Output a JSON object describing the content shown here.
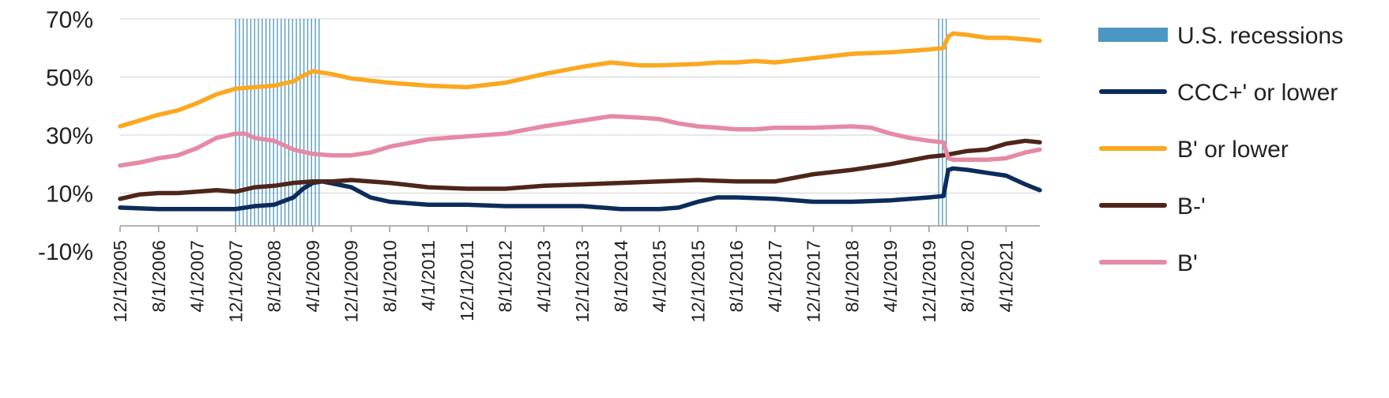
{
  "chart_data": {
    "type": "line",
    "ylim": [
      -10,
      70
    ],
    "yticks": [
      "70%",
      "50%",
      "30%",
      "10%",
      "-10%"
    ],
    "x_tick_labels": [
      "12/1/2005",
      "8/1/2006",
      "4/1/2007",
      "12/1/2007",
      "8/1/2008",
      "4/1/2009",
      "12/1/2009",
      "8/1/2010",
      "4/1/2011",
      "12/1/2011",
      "8/1/2012",
      "4/1/2013",
      "12/1/2013",
      "8/1/2014",
      "4/1/2015",
      "12/1/2015",
      "8/1/2016",
      "4/1/2017",
      "12/1/2017",
      "8/1/2018",
      "4/1/2019",
      "12/1/2019",
      "8/1/2020",
      "4/1/2021"
    ],
    "x_range": [
      "12/1/2005",
      "11/1/2021"
    ],
    "grid": "horizontal",
    "legend_position": "right",
    "recessions": [
      {
        "start": "12/1/2007",
        "end": "6/1/2009"
      },
      {
        "start": "2/1/2020",
        "end": "4/1/2020"
      }
    ],
    "legend": [
      {
        "label": "U.S. recessions",
        "kind": "band",
        "color": "#4a97c3"
      },
      {
        "label": "CCC+' or lower",
        "kind": "line",
        "color": "#0b2c5c"
      },
      {
        "label": "B' or lower",
        "kind": "line",
        "color": "#fba820"
      },
      {
        "label": "B-'",
        "kind": "line",
        "color": "#4e2619"
      },
      {
        "label": "B'",
        "kind": "line",
        "color": "#e58aa5"
      }
    ],
    "series": [
      {
        "name": "CCC+' or lower",
        "color": "#0b2c5c",
        "points": [
          [
            "12/1/2005",
            5
          ],
          [
            "8/1/2006",
            4.5
          ],
          [
            "4/1/2007",
            4.5
          ],
          [
            "12/1/2007",
            4.5
          ],
          [
            "4/1/2008",
            5.5
          ],
          [
            "8/1/2008",
            6
          ],
          [
            "12/1/2008",
            8.5
          ],
          [
            "2/1/2009",
            11.5
          ],
          [
            "4/1/2009",
            13.5
          ],
          [
            "6/1/2009",
            14
          ],
          [
            "12/1/2009",
            12
          ],
          [
            "4/1/2010",
            8.5
          ],
          [
            "8/1/2010",
            7
          ],
          [
            "4/1/2011",
            6
          ],
          [
            "12/1/2011",
            6
          ],
          [
            "8/1/2012",
            5.5
          ],
          [
            "4/1/2013",
            5.5
          ],
          [
            "12/1/2013",
            5.5
          ],
          [
            "8/1/2014",
            4.5
          ],
          [
            "4/1/2015",
            4.5
          ],
          [
            "8/1/2015",
            5
          ],
          [
            "12/1/2015",
            7
          ],
          [
            "4/1/2016",
            8.5
          ],
          [
            "8/1/2016",
            8.5
          ],
          [
            "4/1/2017",
            8
          ],
          [
            "12/1/2017",
            7
          ],
          [
            "8/1/2018",
            7
          ],
          [
            "4/1/2019",
            7.5
          ],
          [
            "12/1/2019",
            8.5
          ],
          [
            "3/1/2020",
            9
          ],
          [
            "4/1/2020",
            18
          ],
          [
            "5/1/2020",
            18.5
          ],
          [
            "8/1/2020",
            18
          ],
          [
            "12/1/2020",
            17
          ],
          [
            "4/1/2021",
            16
          ],
          [
            "8/1/2021",
            13
          ],
          [
            "11/1/2021",
            11
          ]
        ]
      },
      {
        "name": "B' or lower",
        "color": "#fba820",
        "points": [
          [
            "12/1/2005",
            33
          ],
          [
            "4/1/2006",
            35
          ],
          [
            "8/1/2006",
            37
          ],
          [
            "12/1/2006",
            38.5
          ],
          [
            "4/1/2007",
            41
          ],
          [
            "8/1/2007",
            44
          ],
          [
            "12/1/2007",
            46
          ],
          [
            "4/1/2008",
            46.5
          ],
          [
            "8/1/2008",
            47
          ],
          [
            "12/1/2008",
            48.5
          ],
          [
            "2/1/2009",
            50.5
          ],
          [
            "4/1/2009",
            52
          ],
          [
            "8/1/2009",
            51
          ],
          [
            "12/1/2009",
            49.5
          ],
          [
            "8/1/2010",
            48
          ],
          [
            "4/1/2011",
            47
          ],
          [
            "12/1/2011",
            46.5
          ],
          [
            "8/1/2012",
            48
          ],
          [
            "4/1/2013",
            51
          ],
          [
            "12/1/2013",
            53.5
          ],
          [
            "6/1/2014",
            55
          ],
          [
            "12/1/2014",
            54
          ],
          [
            "4/1/2015",
            54
          ],
          [
            "12/1/2015",
            54.5
          ],
          [
            "4/1/2016",
            55
          ],
          [
            "8/1/2016",
            55
          ],
          [
            "12/1/2016",
            55.5
          ],
          [
            "4/1/2017",
            55
          ],
          [
            "12/1/2017",
            56.5
          ],
          [
            "8/1/2018",
            58
          ],
          [
            "4/1/2019",
            58.5
          ],
          [
            "12/1/2019",
            59.5
          ],
          [
            "3/1/2020",
            60
          ],
          [
            "4/1/2020",
            64
          ],
          [
            "5/1/2020",
            65
          ],
          [
            "8/1/2020",
            64.5
          ],
          [
            "12/1/2020",
            63.5
          ],
          [
            "4/1/2021",
            63.5
          ],
          [
            "8/1/2021",
            63
          ],
          [
            "11/1/2021",
            62.5
          ]
        ]
      },
      {
        "name": "B-'",
        "color": "#4e2619",
        "points": [
          [
            "12/1/2005",
            8
          ],
          [
            "4/1/2006",
            9.5
          ],
          [
            "8/1/2006",
            10
          ],
          [
            "12/1/2006",
            10
          ],
          [
            "4/1/2007",
            10.5
          ],
          [
            "8/1/2007",
            11
          ],
          [
            "12/1/2007",
            10.5
          ],
          [
            "4/1/2008",
            12
          ],
          [
            "8/1/2008",
            12.5
          ],
          [
            "12/1/2008",
            13.5
          ],
          [
            "4/1/2009",
            14
          ],
          [
            "8/1/2009",
            14
          ],
          [
            "12/1/2009",
            14.5
          ],
          [
            "8/1/2010",
            13.5
          ],
          [
            "4/1/2011",
            12
          ],
          [
            "12/1/2011",
            11.5
          ],
          [
            "8/1/2012",
            11.5
          ],
          [
            "4/1/2013",
            12.5
          ],
          [
            "12/1/2013",
            13
          ],
          [
            "8/1/2014",
            13.5
          ],
          [
            "4/1/2015",
            14
          ],
          [
            "12/1/2015",
            14.5
          ],
          [
            "8/1/2016",
            14
          ],
          [
            "4/1/2017",
            14
          ],
          [
            "12/1/2017",
            16.5
          ],
          [
            "8/1/2018",
            18
          ],
          [
            "4/1/2019",
            20
          ],
          [
            "12/1/2019",
            22.5
          ],
          [
            "3/1/2020",
            23
          ],
          [
            "8/1/2020",
            24.5
          ],
          [
            "12/1/2020",
            25
          ],
          [
            "4/1/2021",
            27
          ],
          [
            "8/1/2021",
            28
          ],
          [
            "11/1/2021",
            27.5
          ]
        ]
      },
      {
        "name": "B'",
        "color": "#e58aa5",
        "points": [
          [
            "12/1/2005",
            19.5
          ],
          [
            "4/1/2006",
            20.5
          ],
          [
            "8/1/2006",
            22
          ],
          [
            "12/1/2006",
            23
          ],
          [
            "4/1/2007",
            25.5
          ],
          [
            "8/1/2007",
            29
          ],
          [
            "12/1/2007",
            30.5
          ],
          [
            "2/1/2008",
            30.5
          ],
          [
            "4/1/2008",
            29
          ],
          [
            "8/1/2008",
            28
          ],
          [
            "12/1/2008",
            25
          ],
          [
            "4/1/2009",
            23.5
          ],
          [
            "8/1/2009",
            23
          ],
          [
            "12/1/2009",
            23
          ],
          [
            "4/1/2010",
            24
          ],
          [
            "8/1/2010",
            26
          ],
          [
            "4/1/2011",
            28.5
          ],
          [
            "12/1/2011",
            29.5
          ],
          [
            "8/1/2012",
            30.5
          ],
          [
            "4/1/2013",
            33
          ],
          [
            "12/1/2013",
            35
          ],
          [
            "6/1/2014",
            36.5
          ],
          [
            "12/1/2014",
            36
          ],
          [
            "4/1/2015",
            35.5
          ],
          [
            "8/1/2015",
            34
          ],
          [
            "12/1/2015",
            33
          ],
          [
            "4/1/2016",
            32.5
          ],
          [
            "8/1/2016",
            32
          ],
          [
            "12/1/2016",
            32
          ],
          [
            "4/1/2017",
            32.5
          ],
          [
            "12/1/2017",
            32.5
          ],
          [
            "8/1/2018",
            33
          ],
          [
            "12/1/2018",
            32.5
          ],
          [
            "4/1/2019",
            30.5
          ],
          [
            "8/1/2019",
            29
          ],
          [
            "12/1/2019",
            28
          ],
          [
            "3/1/2020",
            27.5
          ],
          [
            "4/1/2020",
            22
          ],
          [
            "5/1/2020",
            21.5
          ],
          [
            "8/1/2020",
            21.5
          ],
          [
            "12/1/2020",
            21.5
          ],
          [
            "4/1/2021",
            22
          ],
          [
            "8/1/2021",
            24
          ],
          [
            "11/1/2021",
            25
          ]
        ]
      }
    ]
  }
}
